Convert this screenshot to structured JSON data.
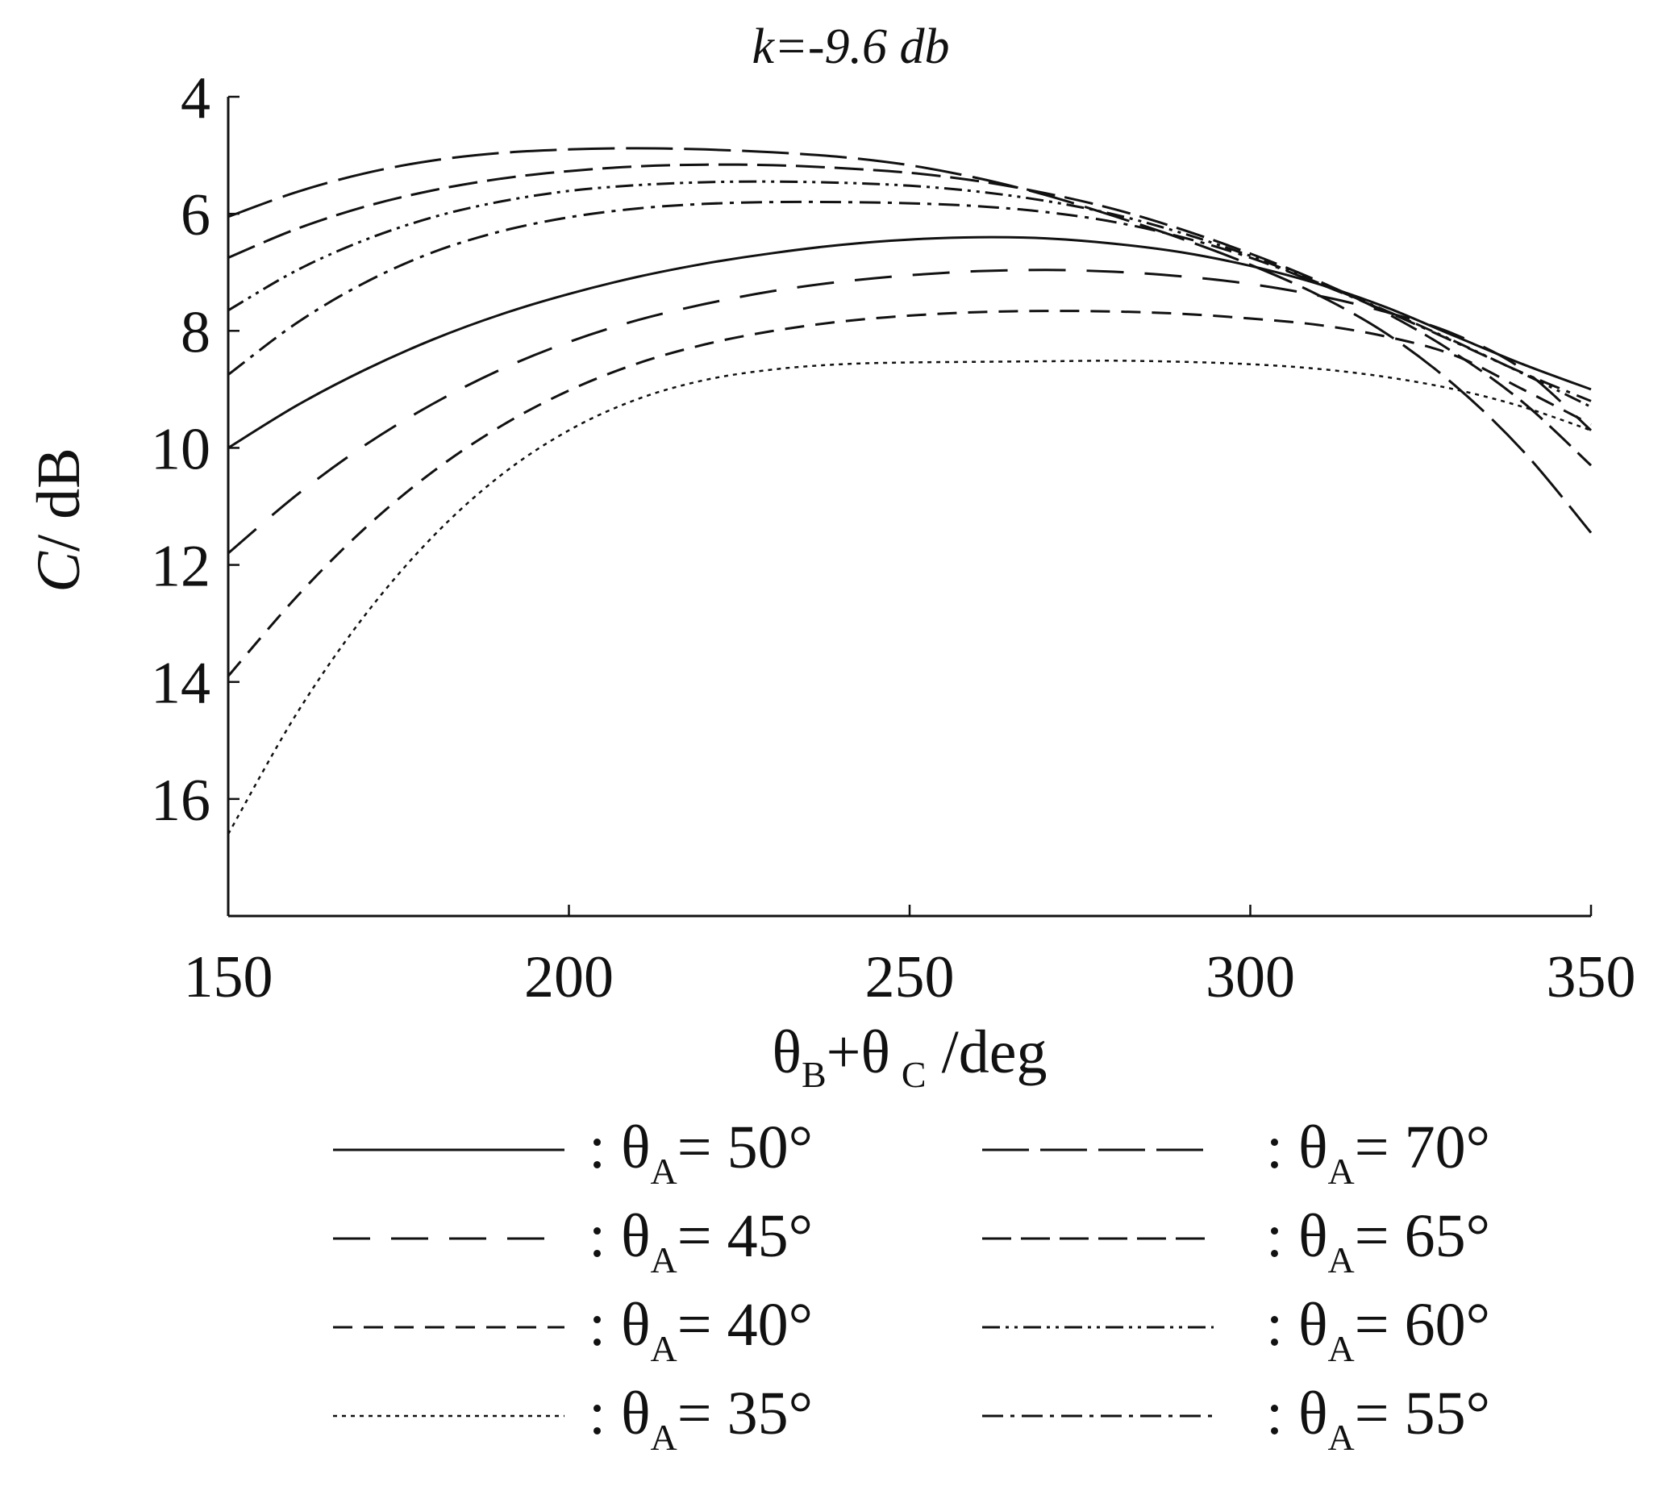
{
  "chart_data": {
    "type": "line",
    "title": "k=-9.6 db",
    "xlabel": {
      "main": "θ",
      "sub1": "B",
      "mid": "+θ",
      "sub2": "C",
      "unit": " /deg"
    },
    "ylabel": {
      "italic": "C",
      "rest": "/ dB"
    },
    "xlim": [
      150,
      350
    ],
    "ylim": [
      4,
      18
    ],
    "y_inverted": true,
    "xticks": [
      150,
      200,
      250,
      300,
      350
    ],
    "yticks": [
      4,
      6,
      8,
      10,
      12,
      14,
      16
    ],
    "x": [
      150,
      160,
      170,
      180,
      190,
      200,
      210,
      220,
      230,
      240,
      250,
      260,
      270,
      280,
      290,
      300,
      310,
      320,
      330,
      340,
      350
    ],
    "series": [
      {
        "name": "θA= 50°",
        "dash": "solid",
        "values": [
          10.0,
          9.28,
          8.67,
          8.15,
          7.72,
          7.37,
          7.08,
          6.85,
          6.67,
          6.53,
          6.44,
          6.4,
          6.42,
          6.51,
          6.66,
          6.89,
          7.2,
          7.6,
          8.09,
          8.57,
          9.0
        ]
      },
      {
        "name": "θA= 45°",
        "dash": "long",
        "values": [
          11.8,
          10.81,
          9.96,
          9.25,
          8.66,
          8.19,
          7.82,
          7.54,
          7.32,
          7.16,
          7.05,
          6.98,
          6.96,
          6.99,
          7.07,
          7.2,
          7.4,
          7.68,
          8.06,
          8.66,
          9.7
        ]
      },
      {
        "name": "θA= 40°",
        "dash": "short",
        "values": [
          13.9,
          12.55,
          11.38,
          10.41,
          9.63,
          9.02,
          8.56,
          8.23,
          8.0,
          7.84,
          7.74,
          7.68,
          7.66,
          7.67,
          7.71,
          7.79,
          7.9,
          8.1,
          8.42,
          9.0,
          9.6
        ]
      },
      {
        "name": "θA= 35°",
        "dash": "dot",
        "values": [
          16.6,
          14.55,
          12.87,
          11.52,
          10.47,
          9.7,
          9.17,
          8.84,
          8.66,
          8.57,
          8.54,
          8.53,
          8.52,
          8.51,
          8.53,
          8.57,
          8.65,
          8.79,
          9.0,
          9.3,
          9.7
        ]
      },
      {
        "name": "θA= 70°",
        "dash": "longdash",
        "values": [
          6.05,
          5.63,
          5.31,
          5.09,
          4.96,
          4.9,
          4.88,
          4.9,
          4.95,
          5.03,
          5.17,
          5.39,
          5.68,
          6.04,
          6.43,
          6.87,
          7.39,
          8.05,
          8.93,
          10.05,
          11.45
        ]
      },
      {
        "name": "θA= 65°",
        "dash": "longdash2",
        "values": [
          6.75,
          6.26,
          5.88,
          5.6,
          5.4,
          5.27,
          5.19,
          5.16,
          5.17,
          5.22,
          5.3,
          5.44,
          5.65,
          5.92,
          6.27,
          6.68,
          7.15,
          7.7,
          8.38,
          9.22,
          10.3
        ]
      },
      {
        "name": "θA= 60°",
        "dash": "dashdotdot",
        "values": [
          7.65,
          6.97,
          6.45,
          6.06,
          5.79,
          5.61,
          5.51,
          5.46,
          5.45,
          5.47,
          5.52,
          5.62,
          5.78,
          6.01,
          6.33,
          6.72,
          7.18,
          7.66,
          8.18,
          8.73,
          9.3
        ]
      },
      {
        "name": "θA= 55°",
        "dash": "dashdot",
        "values": [
          8.75,
          7.87,
          7.18,
          6.66,
          6.3,
          6.06,
          5.91,
          5.83,
          5.8,
          5.8,
          5.82,
          5.87,
          5.97,
          6.14,
          6.4,
          6.75,
          7.19,
          7.67,
          8.19,
          8.72,
          9.2
        ]
      }
    ],
    "legend": {
      "placement": "below",
      "separator": ": ",
      "symbol": "θ",
      "subscript": "A",
      "columns": [
        [
          {
            "series": 0,
            "value": "= 50°"
          },
          {
            "series": 1,
            "value": "= 45°"
          },
          {
            "series": 2,
            "value": "= 40°"
          },
          {
            "series": 3,
            "value": "= 35°"
          }
        ],
        [
          {
            "series": 4,
            "value": "= 70°"
          },
          {
            "series": 5,
            "value": "= 65°"
          },
          {
            "series": 6,
            "value": "= 60°"
          },
          {
            "series": 7,
            "value": "= 55°"
          }
        ]
      ]
    },
    "grid": false,
    "line_color": "#111111"
  }
}
